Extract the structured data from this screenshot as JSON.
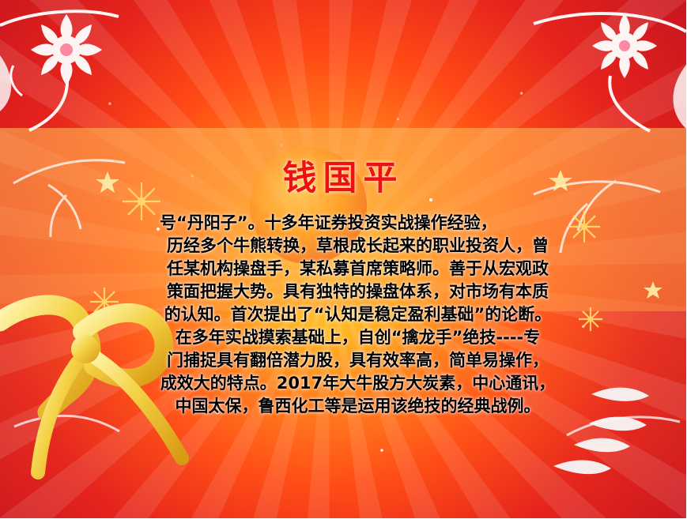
{
  "slide": {
    "title": "钱国平",
    "paragraph_lines": [
      "号“丹阳子”。十多年证券投资实战操作经验，",
      "历经多个牛熊转换，草根成长起来的职业投资人，曾",
      "任某机构操盘手，某私募首席策略师。善于从宏观政",
      "策面把握大势。具有独特的操盘体系，对市场有本质",
      "的认知。首次提出了“认知是稳定盈利基础”的论断。",
      "在多年实战摸索基础上，自创“擒龙手”绝技----专",
      "门捕捉具有翻倍潜力股，具有效率高，简单易操作，",
      "成效大的特点。2017年大牛股方大炭素，中心通讯，",
      "中国太保，鲁西化工等是运用该绝技的经典战例。"
    ],
    "colors": {
      "title": "#ee1111",
      "body_text": "#000000",
      "background_red": "#d91f1f",
      "background_orange": "#ff9a2b",
      "band": "#ffb154"
    },
    "decorations": {
      "ribbon": "gold-ribbon-bow",
      "flourishes": "white-floral-swirls",
      "snowflakes": "snowflake-icons",
      "stars": "sparkle-stars"
    }
  }
}
